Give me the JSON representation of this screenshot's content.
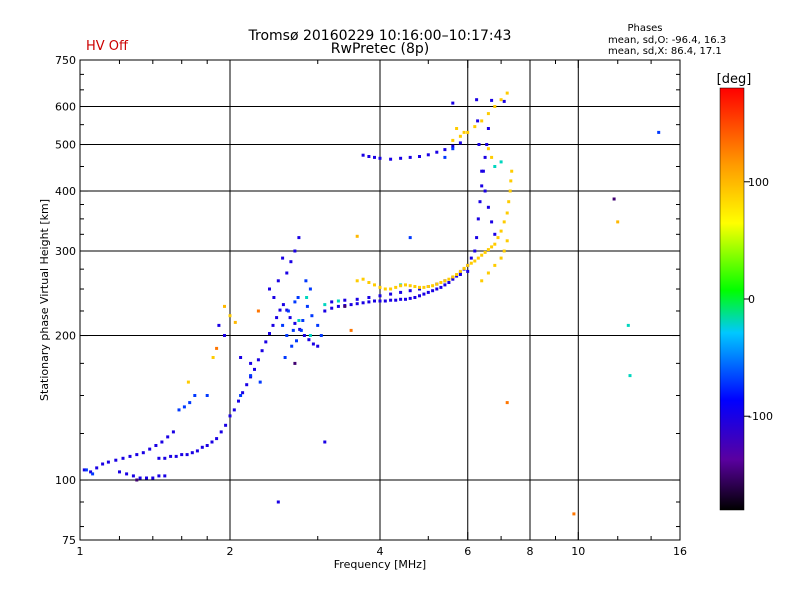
{
  "header": {
    "title_line1": "Tromsø 20160229 10:16:00–10:17:43",
    "title_line2": "RwPretec (8p)",
    "status": "HV Off",
    "phases_title": "Phases",
    "phases_o": "mean, sd,O: -96.4, 16.3",
    "phases_x": "mean, sd,X: 86.4, 17.1"
  },
  "colors": {
    "status": "#cc0000",
    "grid": "#000000"
  },
  "colorbar": {
    "title": "[deg]",
    "ticks": [
      {
        "value": 100,
        "label": "100"
      },
      {
        "value": 0,
        "label": "0"
      },
      {
        "value": -100,
        "label": "-100"
      }
    ],
    "range": [
      -180,
      180
    ]
  },
  "chart_data": {
    "type": "scatter",
    "xlabel": "Frequency [MHz]",
    "ylabel": "Stationary phase Virtual Height [km]",
    "xscale": "log",
    "yscale": "log",
    "xlim": [
      1,
      16
    ],
    "ylim": [
      75,
      750
    ],
    "xticks": [
      {
        "value": 1,
        "label": "1"
      },
      {
        "value": 2,
        "label": "2"
      },
      {
        "value": 4,
        "label": "4"
      },
      {
        "value": 6,
        "label": "6"
      },
      {
        "value": 8,
        "label": "8"
      },
      {
        "value": 10,
        "label": "10"
      },
      {
        "value": 16,
        "label": "16"
      }
    ],
    "yticks": [
      {
        "value": 75,
        "label": "75"
      },
      {
        "value": 100,
        "label": "100"
      },
      {
        "value": 200,
        "label": "200"
      },
      {
        "value": 300,
        "label": "300"
      },
      {
        "value": 400,
        "label": "400"
      },
      {
        "value": 500,
        "label": "500"
      },
      {
        "value": 600,
        "label": "600"
      },
      {
        "value": 750,
        "label": "750"
      }
    ],
    "vgrid": [
      2,
      4,
      6,
      8,
      10
    ],
    "hgrid": [
      100,
      200,
      300,
      400,
      500,
      600
    ],
    "series": [
      {
        "color_value": -100,
        "points": [
          [
            1.02,
            105
          ],
          [
            1.05,
            104
          ],
          [
            1.08,
            106
          ],
          [
            1.11,
            108
          ],
          [
            1.14,
            109
          ],
          [
            1.18,
            110
          ],
          [
            1.22,
            111
          ],
          [
            1.26,
            112
          ],
          [
            1.3,
            113
          ],
          [
            1.34,
            114
          ],
          [
            1.38,
            116
          ],
          [
            1.42,
            118
          ],
          [
            1.46,
            120
          ],
          [
            1.5,
            123
          ],
          [
            1.54,
            126
          ],
          [
            1.2,
            104
          ],
          [
            1.24,
            103
          ],
          [
            1.28,
            102
          ],
          [
            1.32,
            101
          ],
          [
            1.36,
            101
          ],
          [
            1.4,
            101
          ],
          [
            1.44,
            102
          ],
          [
            1.48,
            102
          ],
          [
            1.44,
            111
          ],
          [
            1.48,
            111
          ],
          [
            1.52,
            112
          ],
          [
            1.56,
            112
          ],
          [
            1.6,
            113
          ],
          [
            1.64,
            113
          ],
          [
            1.68,
            114
          ],
          [
            1.72,
            115
          ],
          [
            1.76,
            117
          ],
          [
            1.8,
            118
          ],
          [
            1.84,
            120
          ],
          [
            1.88,
            122
          ],
          [
            1.92,
            126
          ],
          [
            1.96,
            130
          ],
          [
            2.0,
            136
          ],
          [
            2.04,
            140
          ],
          [
            2.08,
            146
          ],
          [
            2.12,
            152
          ],
          [
            2.16,
            158
          ],
          [
            2.2,
            164
          ],
          [
            2.24,
            170
          ],
          [
            2.28,
            178
          ],
          [
            2.32,
            186
          ],
          [
            2.36,
            194
          ],
          [
            2.4,
            202
          ],
          [
            2.44,
            210
          ],
          [
            2.48,
            218
          ],
          [
            2.52,
            226
          ],
          [
            2.56,
            232
          ],
          [
            2.6,
            226
          ],
          [
            2.64,
            218
          ],
          [
            2.7,
            212
          ],
          [
            2.76,
            206
          ],
          [
            2.82,
            200
          ],
          [
            2.88,
            196
          ],
          [
            2.94,
            192
          ],
          [
            3.0,
            190
          ],
          [
            3.1,
            225
          ],
          [
            3.2,
            228
          ],
          [
            3.3,
            230
          ],
          [
            3.4,
            231
          ],
          [
            3.5,
            232
          ],
          [
            3.6,
            233
          ],
          [
            3.7,
            234
          ],
          [
            3.8,
            235
          ],
          [
            3.9,
            236
          ],
          [
            4.0,
            236
          ],
          [
            4.1,
            236
          ],
          [
            4.2,
            237
          ],
          [
            4.3,
            237
          ],
          [
            4.4,
            238
          ],
          [
            4.5,
            238
          ],
          [
            4.6,
            239
          ],
          [
            4.7,
            240
          ],
          [
            4.8,
            242
          ],
          [
            4.9,
            244
          ],
          [
            5.0,
            246
          ],
          [
            5.1,
            248
          ],
          [
            5.2,
            250
          ],
          [
            5.3,
            252
          ],
          [
            5.4,
            255
          ],
          [
            5.5,
            258
          ],
          [
            5.6,
            262
          ],
          [
            5.7,
            266
          ],
          [
            5.8,
            270
          ],
          [
            5.9,
            275
          ],
          [
            6.0,
            280
          ],
          [
            6.1,
            290
          ],
          [
            6.2,
            300
          ],
          [
            6.25,
            320
          ],
          [
            6.3,
            350
          ],
          [
            6.35,
            380
          ],
          [
            6.4,
            410
          ],
          [
            6.45,
            440
          ],
          [
            6.5,
            470
          ],
          [
            6.55,
            500
          ],
          [
            6.6,
            540
          ],
          [
            3.2,
            235
          ],
          [
            3.4,
            237
          ],
          [
            3.6,
            238
          ],
          [
            3.8,
            240
          ],
          [
            4.0,
            242
          ],
          [
            4.2,
            244
          ],
          [
            4.4,
            246
          ],
          [
            4.6,
            248
          ],
          [
            4.8,
            250
          ],
          [
            5.0,
            253
          ],
          [
            5.2,
            256
          ],
          [
            5.4,
            260
          ],
          [
            5.6,
            264
          ],
          [
            5.8,
            268
          ],
          [
            6.0,
            272
          ],
          [
            3.7,
            475
          ],
          [
            3.8,
            472
          ],
          [
            3.9,
            470
          ],
          [
            4.0,
            468
          ],
          [
            4.2,
            466
          ],
          [
            4.4,
            468
          ],
          [
            4.6,
            470
          ],
          [
            4.8,
            472
          ],
          [
            5.0,
            476
          ],
          [
            5.2,
            482
          ],
          [
            5.4,
            488
          ],
          [
            5.6,
            496
          ],
          [
            5.8,
            504
          ],
          [
            6.25,
            620
          ],
          [
            6.28,
            560
          ],
          [
            6.32,
            500
          ],
          [
            6.4,
            440
          ],
          [
            6.5,
            400
          ],
          [
            6.6,
            370
          ],
          [
            6.7,
            345
          ],
          [
            6.8,
            325
          ],
          [
            2.4,
            250
          ],
          [
            2.5,
            260
          ],
          [
            2.6,
            270
          ],
          [
            2.65,
            285
          ],
          [
            2.7,
            300
          ],
          [
            2.75,
            320
          ],
          [
            2.55,
            290
          ],
          [
            2.45,
            240
          ],
          [
            1.9,
            210
          ],
          [
            1.95,
            200
          ],
          [
            2.1,
            180
          ],
          [
            2.2,
            175
          ],
          [
            3.1,
            120
          ],
          [
            2.5,
            90
          ],
          [
            5.6,
            610
          ],
          [
            7.1,
            615
          ],
          [
            6.7,
            618
          ]
        ]
      },
      {
        "color_value": -70,
        "points": [
          [
            2.55,
            210
          ],
          [
            2.6,
            200
          ],
          [
            2.68,
            205
          ],
          [
            2.72,
            195
          ],
          [
            2.8,
            215
          ],
          [
            2.86,
            230
          ],
          [
            2.92,
            220
          ],
          [
            2.66,
            190
          ],
          [
            2.58,
            180
          ],
          [
            2.74,
            240
          ],
          [
            2.84,
            260
          ],
          [
            2.9,
            250
          ],
          [
            2.62,
            225
          ],
          [
            2.7,
            235
          ],
          [
            2.78,
            205
          ],
          [
            3.0,
            210
          ],
          [
            3.05,
            200
          ],
          [
            1.03,
            105
          ],
          [
            1.06,
            103
          ],
          [
            1.58,
            140
          ],
          [
            1.62,
            142
          ],
          [
            1.66,
            145
          ],
          [
            1.7,
            150
          ],
          [
            4.6,
            320
          ],
          [
            5.4,
            470
          ],
          [
            5.6,
            490
          ],
          [
            2.2,
            165
          ],
          [
            2.3,
            160
          ],
          [
            2.1,
            150
          ],
          [
            14.5,
            530
          ],
          [
            1.8,
            150
          ]
        ]
      },
      {
        "color_value": -20,
        "points": [
          [
            12.6,
            210
          ],
          [
            12.7,
            165
          ],
          [
            2.75,
            215
          ],
          [
            2.9,
            200
          ],
          [
            3.1,
            232
          ],
          [
            3.3,
            236
          ],
          [
            6.8,
            450
          ],
          [
            7.0,
            460
          ],
          [
            4.4,
            255
          ],
          [
            2.85,
            240
          ]
        ]
      },
      {
        "color_value": 90,
        "points": [
          [
            3.6,
            260
          ],
          [
            3.7,
            262
          ],
          [
            3.8,
            258
          ],
          [
            3.9,
            255
          ],
          [
            4.0,
            252
          ],
          [
            4.1,
            250
          ],
          [
            4.2,
            250
          ],
          [
            4.3,
            252
          ],
          [
            4.4,
            254
          ],
          [
            4.5,
            255
          ],
          [
            4.6,
            254
          ],
          [
            4.7,
            253
          ],
          [
            4.8,
            252
          ],
          [
            4.9,
            252
          ],
          [
            5.0,
            253
          ],
          [
            5.1,
            254
          ],
          [
            5.2,
            256
          ],
          [
            5.3,
            258
          ],
          [
            5.4,
            260
          ],
          [
            5.5,
            262
          ],
          [
            5.6,
            265
          ],
          [
            5.7,
            268
          ],
          [
            5.8,
            272
          ],
          [
            5.9,
            276
          ],
          [
            6.0,
            280
          ],
          [
            6.1,
            283
          ],
          [
            6.2,
            286
          ],
          [
            6.3,
            290
          ],
          [
            6.4,
            294
          ],
          [
            6.5,
            298
          ],
          [
            6.6,
            302
          ],
          [
            6.7,
            306
          ],
          [
            6.8,
            310
          ],
          [
            6.9,
            320
          ],
          [
            7.0,
            330
          ],
          [
            7.1,
            345
          ],
          [
            7.2,
            360
          ],
          [
            7.25,
            380
          ],
          [
            7.3,
            400
          ],
          [
            7.32,
            420
          ],
          [
            7.35,
            440
          ],
          [
            6.4,
            260
          ],
          [
            6.6,
            270
          ],
          [
            6.8,
            280
          ],
          [
            7.0,
            290
          ],
          [
            7.1,
            300
          ],
          [
            7.2,
            315
          ],
          [
            5.6,
            510
          ],
          [
            5.8,
            520
          ],
          [
            6.0,
            530
          ],
          [
            6.2,
            545
          ],
          [
            6.4,
            560
          ],
          [
            6.6,
            580
          ],
          [
            6.8,
            600
          ],
          [
            7.0,
            620
          ],
          [
            7.2,
            640
          ],
          [
            1.85,
            180
          ],
          [
            1.65,
            160
          ],
          [
            2.0,
            220
          ],
          [
            6.7,
            470
          ],
          [
            6.6,
            490
          ],
          [
            5.9,
            530
          ],
          [
            5.7,
            540
          ]
        ]
      },
      {
        "color_value": 130,
        "points": [
          [
            2.28,
            225
          ],
          [
            7.2,
            145
          ],
          [
            9.8,
            85
          ],
          [
            3.5,
            205
          ],
          [
            1.88,
            188
          ]
        ]
      },
      {
        "color_value": -150,
        "points": [
          [
            11.8,
            385
          ],
          [
            2.7,
            175
          ],
          [
            1.3,
            100
          ],
          [
            3.4,
            230
          ]
        ]
      },
      {
        "color_value": 100,
        "points": [
          [
            12.0,
            345
          ],
          [
            3.6,
            322
          ],
          [
            2.05,
            213
          ],
          [
            1.95,
            230
          ]
        ]
      }
    ]
  }
}
